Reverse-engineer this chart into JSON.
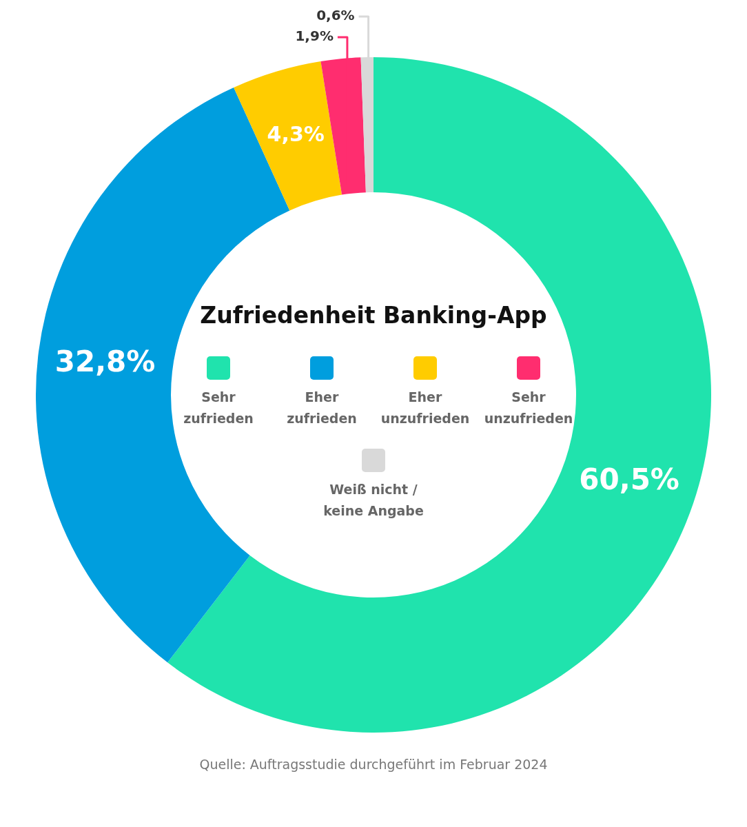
{
  "chart_data": {
    "type": "donut",
    "title": "Zufriedenheit Banking-App",
    "categories": [
      "Sehr zufrieden",
      "Eher zufrieden",
      "Eher unzufrieden",
      "Sehr unzufrieden",
      "Weiß nicht / keine Angabe"
    ],
    "values": [
      60.5,
      32.8,
      4.3,
      1.9,
      0.6
    ],
    "colors": [
      "#20e3ad",
      "#009ede",
      "#ffcc00",
      "#ff2d6f",
      "#d9d9d9"
    ],
    "value_labels": [
      "60,5%",
      "32,8%",
      "4,3%",
      "1,9%",
      "0,6%"
    ],
    "legend": "center",
    "annotations": [
      "Quelle: Auftragsstudie durchgeführt im Februar 2024"
    ]
  }
}
